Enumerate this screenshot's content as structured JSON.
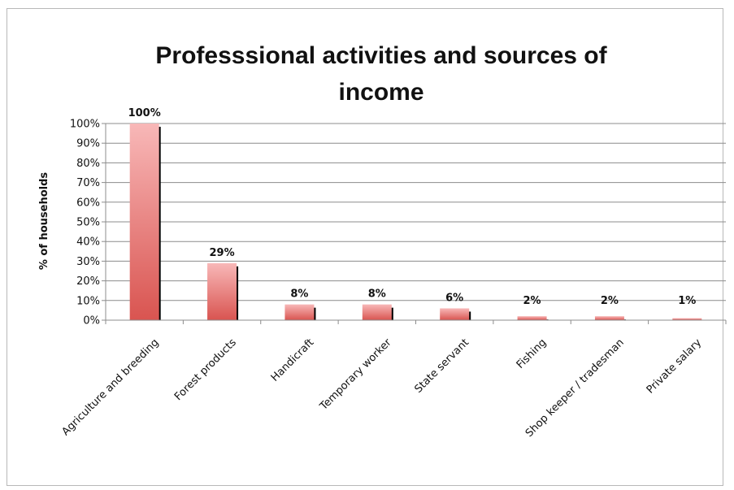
{
  "chart_data": {
    "type": "bar",
    "title_lines": [
      "Professsional activities and sources of",
      "income"
    ],
    "ylabel": "% of households",
    "xlabel": "",
    "ylim": [
      0,
      100
    ],
    "yticks": [
      "0%",
      "10%",
      "20%",
      "30%",
      "40%",
      "50%",
      "60%",
      "70%",
      "80%",
      "90%",
      "100%"
    ],
    "categories": [
      "Agriculture and breeding",
      "Forest products",
      "Handicraft",
      "Temporary worker",
      "State servant",
      "Fishing",
      "Shop keeper / tradesman",
      "Private salary"
    ],
    "values": [
      100,
      29,
      8,
      8,
      6,
      2,
      2,
      1
    ],
    "data_labels": [
      "100%",
      "29%",
      "8%",
      "8%",
      "6%",
      "2%",
      "2%",
      "1%"
    ],
    "grid": true,
    "legend": "none",
    "colors": {
      "bar_light": "#f8b0b0",
      "bar_dark": "#d9534f",
      "shadow": "#000000",
      "grid": "#8c8c8c"
    }
  }
}
